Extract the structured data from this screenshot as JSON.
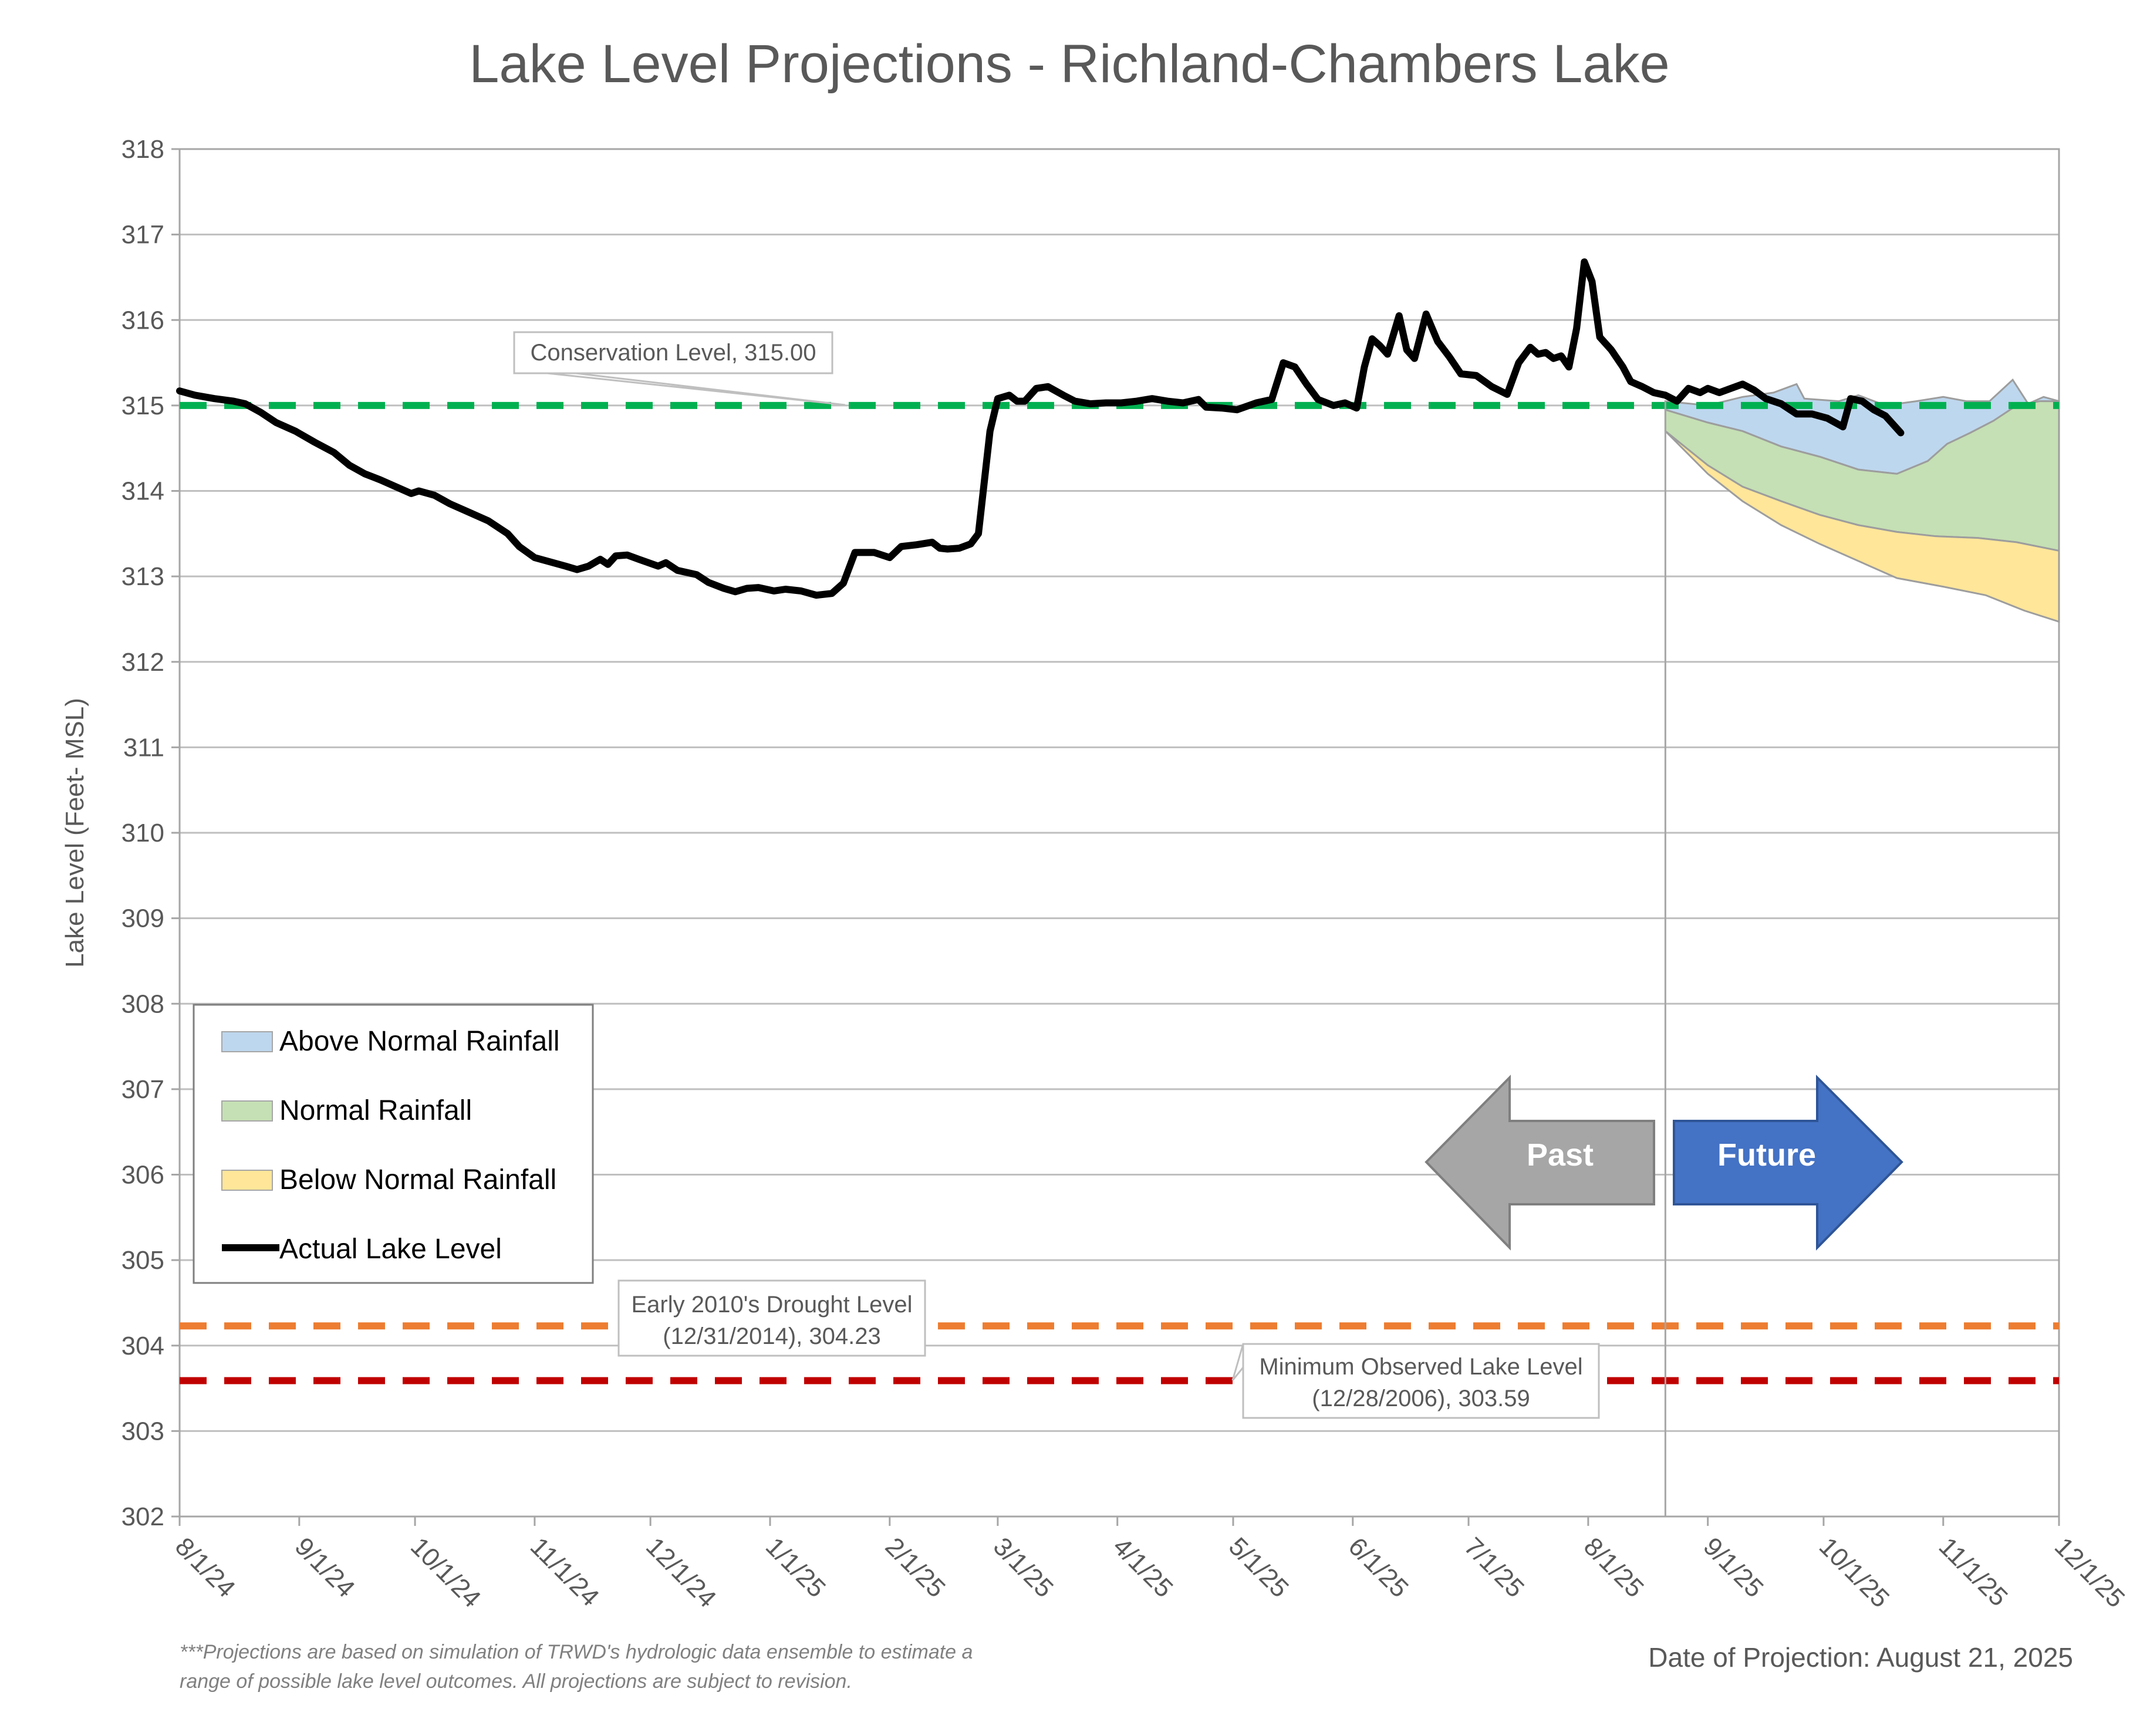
{
  "chart_data": {
    "type": "line",
    "title": "Lake Level Projections - Richland-Chambers Lake",
    "ylabel": "Lake Level (Feet- MSL)",
    "xlabel": "",
    "ylim": [
      302,
      318
    ],
    "yticks": [
      302,
      303,
      304,
      305,
      306,
      307,
      308,
      309,
      310,
      311,
      312,
      313,
      314,
      315,
      316,
      317,
      318
    ],
    "xlim": [
      "2024-08-01",
      "2025-12-01"
    ],
    "xticks": [
      {
        "date": "2024-08-01",
        "label": "8/1/24"
      },
      {
        "date": "2024-09-01",
        "label": "9/1/24"
      },
      {
        "date": "2024-10-01",
        "label": "10/1/24"
      },
      {
        "date": "2024-11-01",
        "label": "11/1/24"
      },
      {
        "date": "2024-12-01",
        "label": "12/1/24"
      },
      {
        "date": "2025-01-01",
        "label": "1/1/25"
      },
      {
        "date": "2025-02-01",
        "label": "2/1/25"
      },
      {
        "date": "2025-03-01",
        "label": "3/1/25"
      },
      {
        "date": "2025-04-01",
        "label": "4/1/25"
      },
      {
        "date": "2025-05-01",
        "label": "5/1/25"
      },
      {
        "date": "2025-06-01",
        "label": "6/1/25"
      },
      {
        "date": "2025-07-01",
        "label": "7/1/25"
      },
      {
        "date": "2025-08-01",
        "label": "8/1/25"
      },
      {
        "date": "2025-09-01",
        "label": "9/1/25"
      },
      {
        "date": "2025-10-01",
        "label": "10/1/25"
      },
      {
        "date": "2025-11-01",
        "label": "11/1/25"
      },
      {
        "date": "2025-12-01",
        "label": "12/1/25"
      }
    ],
    "grid": true,
    "legend_position": "bottom-left",
    "projection_date": "2025-08-21",
    "reference_lines": [
      {
        "name": "Conservation Level",
        "value": 315.0,
        "color": "#00b050",
        "label": "Conservation Level, 315.00"
      },
      {
        "name": "Early 2010's Drought Level",
        "value": 304.23,
        "color": "#ed7d31",
        "label_lines": [
          "Early 2010's Drought Level",
          "(12/31/2014), 304.23"
        ]
      },
      {
        "name": "Minimum Observed Lake Level",
        "value": 303.59,
        "color": "#c00000",
        "label_lines": [
          "Minimum Observed Lake Level",
          "(12/28/2006), 303.59"
        ]
      }
    ],
    "series": [
      {
        "name": "Actual Lake Level",
        "color": "#000000",
        "points": [
          [
            "2024-08-01",
            315.17
          ],
          [
            "2024-08-05",
            315.12
          ],
          [
            "2024-08-10",
            315.08
          ],
          [
            "2024-08-15",
            315.05
          ],
          [
            "2024-08-18",
            315.02
          ],
          [
            "2024-08-22",
            314.92
          ],
          [
            "2024-08-26",
            314.8
          ],
          [
            "2024-08-31",
            314.7
          ],
          [
            "2024-09-05",
            314.57
          ],
          [
            "2024-09-10",
            314.45
          ],
          [
            "2024-09-14",
            314.3
          ],
          [
            "2024-09-18",
            314.2
          ],
          [
            "2024-09-22",
            314.13
          ],
          [
            "2024-09-26",
            314.05
          ],
          [
            "2024-09-30",
            313.97
          ],
          [
            "2024-10-02",
            314.0
          ],
          [
            "2024-10-06",
            313.95
          ],
          [
            "2024-10-10",
            313.85
          ],
          [
            "2024-10-15",
            313.75
          ],
          [
            "2024-10-20",
            313.65
          ],
          [
            "2024-10-25",
            313.5
          ],
          [
            "2024-10-28",
            313.35
          ],
          [
            "2024-11-01",
            313.22
          ],
          [
            "2024-11-05",
            313.17
          ],
          [
            "2024-11-09",
            313.12
          ],
          [
            "2024-11-12",
            313.08
          ],
          [
            "2024-11-15",
            313.12
          ],
          [
            "2024-11-18",
            313.2
          ],
          [
            "2024-11-20",
            313.14
          ],
          [
            "2024-11-22",
            313.24
          ],
          [
            "2024-11-25",
            313.25
          ],
          [
            "2024-11-28",
            313.2
          ],
          [
            "2024-12-03",
            313.12
          ],
          [
            "2024-12-05",
            313.16
          ],
          [
            "2024-12-08",
            313.07
          ],
          [
            "2024-12-13",
            313.02
          ],
          [
            "2024-12-16",
            312.93
          ],
          [
            "2024-12-20",
            312.86
          ],
          [
            "2024-12-23",
            312.82
          ],
          [
            "2024-12-26",
            312.86
          ],
          [
            "2024-12-29",
            312.87
          ],
          [
            "2025-01-02",
            312.83
          ],
          [
            "2025-01-05",
            312.85
          ],
          [
            "2025-01-09",
            312.83
          ],
          [
            "2025-01-13",
            312.78
          ],
          [
            "2025-01-17",
            312.8
          ],
          [
            "2025-01-20",
            312.92
          ],
          [
            "2025-01-23",
            313.28
          ],
          [
            "2025-01-28",
            313.28
          ],
          [
            "2025-02-01",
            313.22
          ],
          [
            "2025-02-04",
            313.35
          ],
          [
            "2025-02-08",
            313.37
          ],
          [
            "2025-02-12",
            313.4
          ],
          [
            "2025-02-14",
            313.33
          ],
          [
            "2025-02-16",
            313.32
          ],
          [
            "2025-02-19",
            313.33
          ],
          [
            "2025-02-22",
            313.38
          ],
          [
            "2025-02-24",
            313.5
          ],
          [
            "2025-02-27",
            314.7
          ],
          [
            "2025-03-01",
            315.08
          ],
          [
            "2025-03-04",
            315.12
          ],
          [
            "2025-03-06",
            315.05
          ],
          [
            "2025-03-08",
            315.05
          ],
          [
            "2025-03-11",
            315.2
          ],
          [
            "2025-03-14",
            315.22
          ],
          [
            "2025-03-18",
            315.12
          ],
          [
            "2025-03-21",
            315.05
          ],
          [
            "2025-03-25",
            315.02
          ],
          [
            "2025-03-29",
            315.03
          ],
          [
            "2025-04-02",
            315.03
          ],
          [
            "2025-04-06",
            315.05
          ],
          [
            "2025-04-10",
            315.08
          ],
          [
            "2025-04-14",
            315.05
          ],
          [
            "2025-04-18",
            315.03
          ],
          [
            "2025-04-22",
            315.07
          ],
          [
            "2025-04-24",
            314.98
          ],
          [
            "2025-04-28",
            314.97
          ],
          [
            "2025-05-02",
            314.95
          ],
          [
            "2025-05-07",
            315.03
          ],
          [
            "2025-05-11",
            315.07
          ],
          [
            "2025-05-14",
            315.5
          ],
          [
            "2025-05-17",
            315.45
          ],
          [
            "2025-05-20",
            315.25
          ],
          [
            "2025-05-23",
            315.07
          ],
          [
            "2025-05-27",
            315.0
          ],
          [
            "2025-05-30",
            315.03
          ],
          [
            "2025-06-02",
            314.97
          ],
          [
            "2025-06-04",
            315.45
          ],
          [
            "2025-06-06",
            315.78
          ],
          [
            "2025-06-08",
            315.7
          ],
          [
            "2025-06-10",
            315.6
          ],
          [
            "2025-06-13",
            316.05
          ],
          [
            "2025-06-15",
            315.65
          ],
          [
            "2025-06-17",
            315.55
          ],
          [
            "2025-06-20",
            316.07
          ],
          [
            "2025-06-23",
            315.75
          ],
          [
            "2025-06-26",
            315.57
          ],
          [
            "2025-06-29",
            315.37
          ],
          [
            "2025-07-03",
            315.35
          ],
          [
            "2025-07-07",
            315.22
          ],
          [
            "2025-07-11",
            315.13
          ],
          [
            "2025-07-14",
            315.5
          ],
          [
            "2025-07-17",
            315.68
          ],
          [
            "2025-07-19",
            315.6
          ],
          [
            "2025-07-21",
            315.62
          ],
          [
            "2025-07-23",
            315.55
          ],
          [
            "2025-07-25",
            315.58
          ],
          [
            "2025-07-27",
            315.45
          ],
          [
            "2025-07-29",
            315.9
          ],
          [
            "2025-07-31",
            316.68
          ],
          [
            "2025-08-02",
            316.45
          ],
          [
            "2025-08-04",
            315.8
          ],
          [
            "2025-08-07",
            315.65
          ],
          [
            "2025-08-10",
            315.45
          ],
          [
            "2025-08-12",
            315.28
          ],
          [
            "2025-08-15",
            315.22
          ],
          [
            "2025-08-18",
            315.15
          ],
          [
            "2025-08-21",
            315.12
          ],
          [
            "2025-08-24",
            315.05
          ],
          [
            "2025-08-27",
            315.2
          ],
          [
            "2025-08-30",
            315.15
          ],
          [
            "2025-09-01",
            315.2
          ],
          [
            "2025-09-04",
            315.15
          ],
          [
            "2025-09-07",
            315.2
          ],
          [
            "2025-09-10",
            315.25
          ],
          [
            "2025-09-13",
            315.18
          ],
          [
            "2025-09-16",
            315.08
          ],
          [
            "2025-09-20",
            315.02
          ],
          [
            "2025-09-24",
            314.9
          ],
          [
            "2025-09-28",
            314.9
          ],
          [
            "2025-10-02",
            314.85
          ],
          [
            "2025-10-06",
            314.75
          ],
          [
            "2025-10-08",
            315.08
          ],
          [
            "2025-10-11",
            315.05
          ],
          [
            "2025-10-14",
            314.95
          ],
          [
            "2025-10-17",
            314.88
          ],
          [
            "2025-10-21",
            314.68
          ]
        ]
      }
    ],
    "bands": [
      {
        "name": "Above Normal Rainfall",
        "color": "#bdd7ee",
        "upper": [
          [
            "2025-08-21",
            315.05
          ],
          [
            "2025-09-01",
            315.0
          ],
          [
            "2025-09-10",
            315.1
          ],
          [
            "2025-09-18",
            315.15
          ],
          [
            "2025-09-24",
            315.25
          ],
          [
            "2025-09-26",
            315.08
          ],
          [
            "2025-10-05",
            315.05
          ],
          [
            "2025-10-10",
            315.12
          ],
          [
            "2025-10-17",
            315.0
          ],
          [
            "2025-10-25",
            315.05
          ],
          [
            "2025-11-01",
            315.1
          ],
          [
            "2025-11-07",
            315.05
          ],
          [
            "2025-11-13",
            315.05
          ],
          [
            "2025-11-19",
            315.3
          ],
          [
            "2025-11-23",
            315.02
          ],
          [
            "2025-11-27",
            315.1
          ],
          [
            "2025-12-01",
            315.05
          ]
        ],
        "lower": [
          [
            "2025-08-21",
            314.95
          ],
          [
            "2025-09-01",
            314.8
          ],
          [
            "2025-09-10",
            314.7
          ],
          [
            "2025-09-20",
            314.52
          ],
          [
            "2025-09-30",
            314.4
          ],
          [
            "2025-10-10",
            314.25
          ],
          [
            "2025-10-20",
            314.2
          ],
          [
            "2025-10-28",
            314.35
          ],
          [
            "2025-11-02",
            314.55
          ],
          [
            "2025-11-08",
            314.68
          ],
          [
            "2025-11-14",
            314.82
          ],
          [
            "2025-11-20",
            315.0
          ],
          [
            "2025-11-26",
            315.05
          ],
          [
            "2025-12-01",
            315.05
          ]
        ]
      },
      {
        "name": "Normal Rainfall",
        "color": "#c5e0b4",
        "upper": [
          [
            "2025-08-21",
            314.95
          ],
          [
            "2025-09-01",
            314.8
          ],
          [
            "2025-09-10",
            314.7
          ],
          [
            "2025-09-20",
            314.52
          ],
          [
            "2025-09-30",
            314.4
          ],
          [
            "2025-10-10",
            314.25
          ],
          [
            "2025-10-20",
            314.2
          ],
          [
            "2025-10-28",
            314.35
          ],
          [
            "2025-11-02",
            314.55
          ],
          [
            "2025-11-08",
            314.68
          ],
          [
            "2025-11-14",
            314.82
          ],
          [
            "2025-11-20",
            315.0
          ],
          [
            "2025-11-26",
            315.05
          ],
          [
            "2025-12-01",
            315.05
          ]
        ],
        "lower": [
          [
            "2025-08-21",
            314.7
          ],
          [
            "2025-09-01",
            314.3
          ],
          [
            "2025-09-10",
            314.05
          ],
          [
            "2025-09-20",
            313.88
          ],
          [
            "2025-09-30",
            313.72
          ],
          [
            "2025-10-10",
            313.6
          ],
          [
            "2025-10-20",
            313.52
          ],
          [
            "2025-10-30",
            313.47
          ],
          [
            "2025-11-10",
            313.45
          ],
          [
            "2025-11-20",
            313.4
          ],
          [
            "2025-12-01",
            313.3
          ]
        ]
      },
      {
        "name": "Below Normal Rainfall",
        "color": "#ffe699",
        "upper": [
          [
            "2025-08-21",
            314.7
          ],
          [
            "2025-09-01",
            314.3
          ],
          [
            "2025-09-10",
            314.05
          ],
          [
            "2025-09-20",
            313.88
          ],
          [
            "2025-09-30",
            313.72
          ],
          [
            "2025-10-10",
            313.6
          ],
          [
            "2025-10-20",
            313.52
          ],
          [
            "2025-10-30",
            313.47
          ],
          [
            "2025-11-10",
            313.45
          ],
          [
            "2025-11-20",
            313.4
          ],
          [
            "2025-12-01",
            313.3
          ]
        ],
        "lower": [
          [
            "2025-08-21",
            314.7
          ],
          [
            "2025-09-01",
            314.2
          ],
          [
            "2025-09-10",
            313.88
          ],
          [
            "2025-09-20",
            313.6
          ],
          [
            "2025-09-30",
            313.38
          ],
          [
            "2025-10-10",
            313.18
          ],
          [
            "2025-10-20",
            312.98
          ],
          [
            "2025-11-01",
            312.88
          ],
          [
            "2025-11-12",
            312.78
          ],
          [
            "2025-11-22",
            312.6
          ],
          [
            "2025-12-01",
            312.47
          ]
        ]
      }
    ],
    "legend": [
      {
        "label": "Above Normal Rainfall",
        "kind": "swatch",
        "color": "#bdd7ee"
      },
      {
        "label": "Normal Rainfall",
        "kind": "swatch",
        "color": "#c5e0b4"
      },
      {
        "label": "Below Normal Rainfall",
        "kind": "swatch",
        "color": "#ffe699"
      },
      {
        "label": "Actual Lake Level",
        "kind": "line",
        "color": "#000000"
      }
    ],
    "arrows": {
      "past": "Past",
      "future": "Future",
      "past_color": "#a6a6a6",
      "future_color": "#4472c4"
    },
    "footnote": [
      "***Projections are based on simulation of TRWD's hydrologic data ensemble to estimate a",
      "range of possible lake level outcomes.  All projections are subject to revision."
    ],
    "projection_note": "Date of Projection: August 21, 2025"
  }
}
